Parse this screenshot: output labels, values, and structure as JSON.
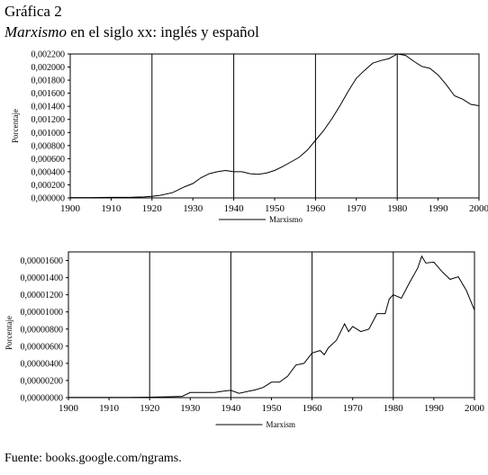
{
  "title": "Gráfica 2",
  "subtitle": {
    "italic": "Marxismo",
    "rest": " en el siglo xx: inglés y español"
  },
  "source": "Fuente: books.google.com/ngrams.",
  "chart_data": [
    {
      "type": "line",
      "ylabel": "Porcentaje",
      "legend": "Marxismo",
      "legend_position": "bottom-center",
      "xlim": [
        1900,
        2000
      ],
      "ylim": [
        0,
        0.0022
      ],
      "xticks": [
        "1900",
        "1910",
        "1920",
        "1930",
        "1940",
        "1950",
        "1960",
        "1970",
        "1980",
        "1990",
        "2000"
      ],
      "yticks": [
        "0,000000",
        "0,000200",
        "0,000400",
        "0,000600",
        "0,000800",
        "0,001000",
        "0,001200",
        "0,001400",
        "0,001600",
        "0,001800",
        "0,002000",
        "0,002200"
      ],
      "vlines": [
        1920,
        1940,
        1960,
        1980
      ],
      "x": [
        1900,
        1905,
        1910,
        1915,
        1918,
        1920,
        1922,
        1925,
        1928,
        1930,
        1932,
        1934,
        1936,
        1938,
        1940,
        1942,
        1944,
        1946,
        1948,
        1950,
        1952,
        1954,
        1956,
        1958,
        1960,
        1962,
        1964,
        1966,
        1968,
        1970,
        1972,
        1974,
        1976,
        1978,
        1980,
        1982,
        1984,
        1986,
        1988,
        1990,
        1992,
        1994,
        1996,
        1998,
        2000
      ],
      "y": [
        5e-06,
        5e-06,
        8e-06,
        1e-05,
        1.5e-05,
        2.5e-05,
        4e-05,
        8e-05,
        0.00017,
        0.00022,
        0.00031,
        0.00037,
        0.0004,
        0.00042,
        0.0004,
        0.0004,
        0.00037,
        0.00036,
        0.00038,
        0.00042,
        0.00048,
        0.00055,
        0.00062,
        0.00073,
        0.00088,
        0.00103,
        0.00121,
        0.00141,
        0.00163,
        0.00183,
        0.00195,
        0.00206,
        0.0021,
        0.00213,
        0.0022,
        0.00218,
        0.00209,
        0.00201,
        0.00198,
        0.00188,
        0.00173,
        0.00156,
        0.00151,
        0.00143,
        0.00141
      ]
    },
    {
      "type": "line",
      "ylabel": "Porcentaje",
      "legend": "Marxism",
      "legend_position": "bottom-center",
      "xlim": [
        1900,
        2000
      ],
      "ylim": [
        0,
        1.7e-05
      ],
      "xticks": [
        "1900",
        "1910",
        "1920",
        "1930",
        "1940",
        "1950",
        "1960",
        "1970",
        "1980",
        "1990",
        "2000"
      ],
      "yticks": [
        "0,00000000",
        "0,00000200",
        "0,00000400",
        "0,00000600",
        "0,00000800",
        "0,00001000",
        "0,00001200",
        "0,00001400",
        "0,00001600"
      ],
      "vlines": [
        1920,
        1940,
        1960,
        1980
      ],
      "x": [
        1900,
        1905,
        1910,
        1915,
        1920,
        1925,
        1928,
        1930,
        1933,
        1936,
        1938,
        1940,
        1942,
        1944,
        1946,
        1948,
        1950,
        1952,
        1954,
        1956,
        1958,
        1960,
        1962,
        1963,
        1964,
        1966,
        1968,
        1969,
        1970,
        1972,
        1974,
        1976,
        1978,
        1979,
        1980,
        1982,
        1984,
        1986,
        1987,
        1988,
        1990,
        1992,
        1994,
        1996,
        1998,
        2000
      ],
      "y": [
        3e-08,
        3e-08,
        3e-08,
        3e-08,
        5e-08,
        1e-07,
        1.5e-07,
        6e-07,
        6e-07,
        6e-07,
        7.5e-07,
        8.5e-07,
        5e-07,
        7e-07,
        9e-07,
        1.2e-06,
        1.8e-06,
        1.8e-06,
        2.5e-06,
        3.8e-06,
        4e-06,
        5.2e-06,
        5.5e-06,
        5e-06,
        5.8e-06,
        6.7e-06,
        8.6e-06,
        7.7e-06,
        8.3e-06,
        7.7e-06,
        8e-06,
        9.8e-06,
        9.8e-06,
        1.15e-05,
        1.2e-05,
        1.16e-05,
        1.34e-05,
        1.51e-05,
        1.65e-05,
        1.57e-05,
        1.58e-05,
        1.47e-05,
        1.38e-05,
        1.41e-05,
        1.25e-05,
        1.02e-05
      ]
    }
  ]
}
